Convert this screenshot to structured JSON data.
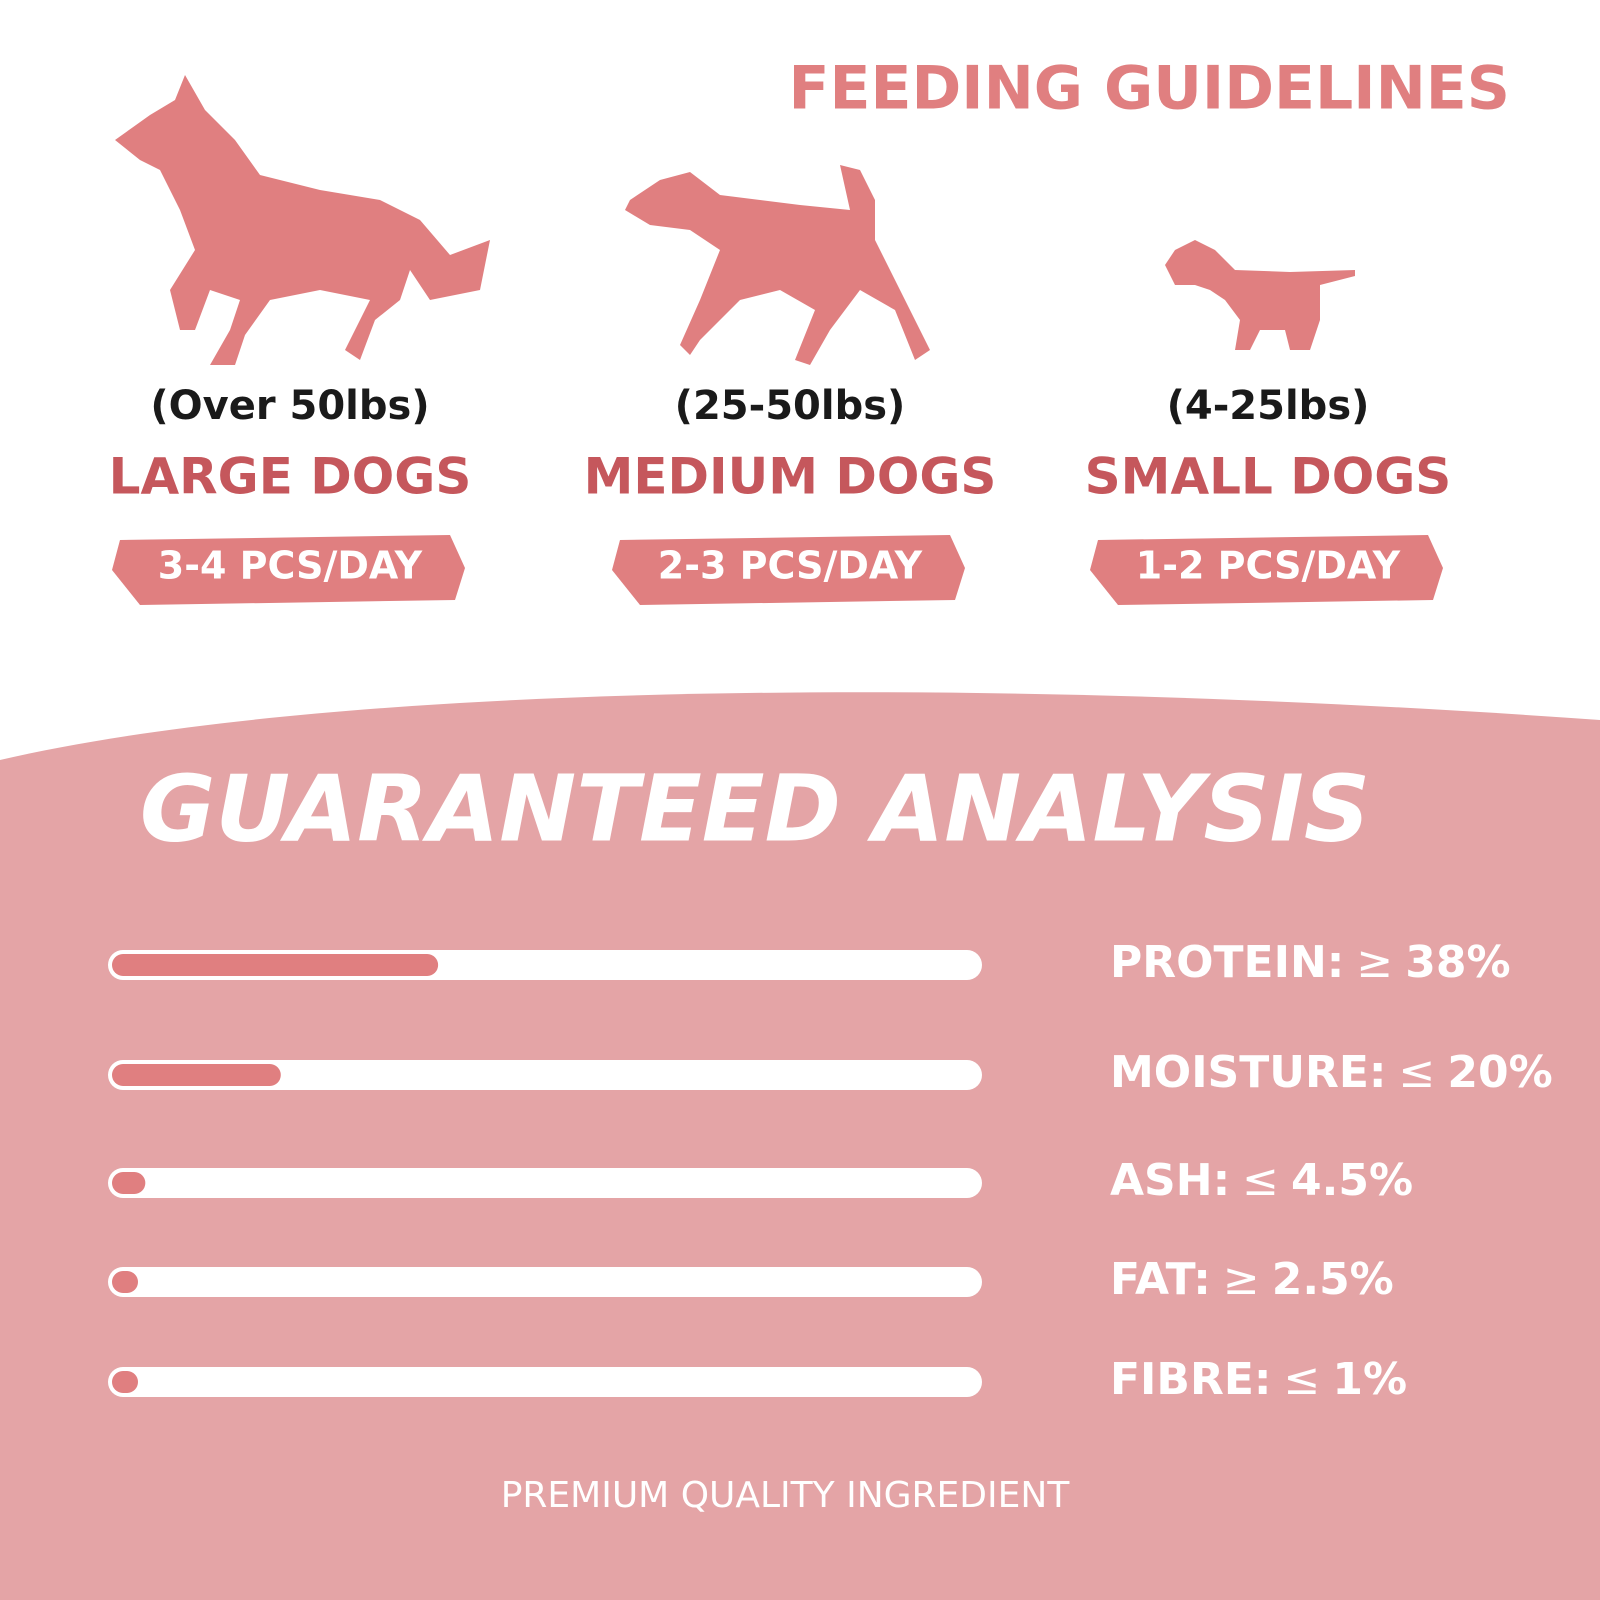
{
  "feeding": {
    "title": "FEEDING GUIDELINES",
    "dogs": [
      {
        "weight": "(Over 50lbs)",
        "name": "LARGE DOGS",
        "dose": "3-4 PCS/DAY"
      },
      {
        "weight": "(25-50lbs)",
        "name": "MEDIUM DOGS",
        "dose": "2-3 PCS/DAY"
      },
      {
        "weight": "(4-25lbs)",
        "name": "SMALL DOGS",
        "dose": "1-2 PCS/DAY"
      }
    ]
  },
  "analysis": {
    "title": "GUARANTEED ANALYSIS",
    "xlim": [
      0,
      100
    ],
    "items": [
      {
        "name": "PROTEIN:",
        "sign": "≥",
        "value": 38,
        "value_label": "38%"
      },
      {
        "name": "MOISTURE:",
        "sign": "≤",
        "value": 20,
        "value_label": "20%"
      },
      {
        "name": "ASH:",
        "sign": "≤",
        "value": 4.5,
        "value_label": "4.5%"
      },
      {
        "name": "FAT:",
        "sign": "≥",
        "value": 2.5,
        "value_label": "2.5%"
      },
      {
        "name": "FIBRE:",
        "sign": "≤",
        "value": 1,
        "value_label": "1%"
      }
    ]
  },
  "footer": "PREMIUM QUALITY INGREDIENT"
}
